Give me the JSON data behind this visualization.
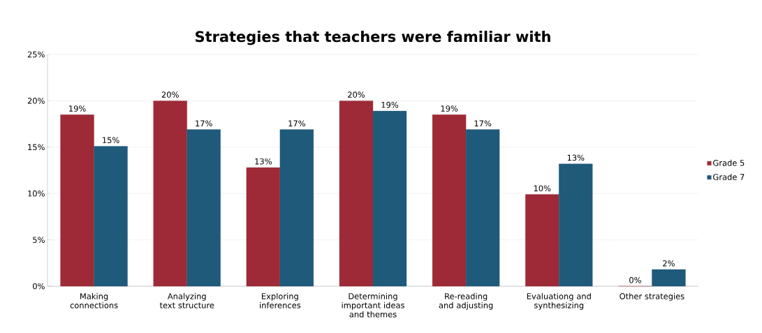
{
  "chart_data": {
    "type": "bar",
    "title": "Strategies that teachers were familiar with",
    "categories": [
      "Making connections",
      "Analyzing text structure",
      "Exploring inferences",
      "Determining important ideas and themes",
      "Re-reading and adjusting",
      "Evaluationg and synthesizing",
      "Other strategies"
    ],
    "series": [
      {
        "name": "Grade 5",
        "color": "#9e2a37",
        "values": [
          18.5,
          20.0,
          12.8,
          20.0,
          18.5,
          9.9,
          0
        ],
        "value_labels": [
          "19%",
          "20%",
          "13%",
          "20%",
          "19%",
          "10%",
          "0%"
        ]
      },
      {
        "name": "Grade 7",
        "color": "#1f5a7a",
        "values": [
          15.1,
          16.9,
          16.9,
          18.9,
          16.9,
          13.2,
          1.8
        ],
        "value_labels": [
          "15%",
          "17%",
          "17%",
          "19%",
          "17%",
          "13%",
          "2%"
        ]
      }
    ],
    "ylim": [
      0,
      25
    ],
    "yticks": [
      {
        "value": 0,
        "label": "0%"
      },
      {
        "value": 5,
        "label": "5%"
      },
      {
        "value": 10,
        "label": "10%"
      },
      {
        "value": 15,
        "label": "15%"
      },
      {
        "value": 20,
        "label": "20%"
      },
      {
        "value": 25,
        "label": "25%"
      }
    ],
    "grid": "y",
    "legend": "right"
  }
}
